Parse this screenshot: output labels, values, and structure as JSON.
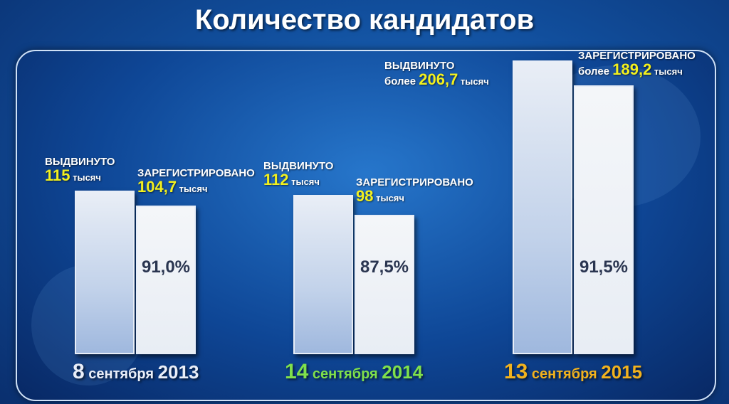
{
  "title": "Количество кандидатов",
  "colors": {
    "date_2013": "#e9eef8",
    "date_2014": "#7fe04b",
    "date_2015": "#f2b21e",
    "number_highlight": "#f2f01e"
  },
  "chart_data": {
    "type": "bar",
    "title": "Количество кандидатов",
    "categories": [
      "8 сентября 2013",
      "14 сентября 2014",
      "13 сентября 2015"
    ],
    "unit": "тысяч",
    "series": [
      {
        "name": "ВЫДВИНУТО",
        "values": [
          115,
          112,
          206.7
        ]
      },
      {
        "name": "ЗАРЕГИСТРИРОВАНО",
        "values": [
          104.7,
          98,
          189.2
        ]
      }
    ],
    "percent_registered": [
      "91,0%",
      "87,5%",
      "91,5%"
    ],
    "groups": [
      {
        "nominated_label": "ВЫДВИНУТО",
        "nominated_prefix": "",
        "nominated_value": "115",
        "nominated_unit": "тысяч",
        "registered_label": "ЗАРЕГИСТРИРОВАНО",
        "registered_prefix": "",
        "registered_value": "104,7",
        "registered_unit": "тысяч",
        "percent": "91,0%",
        "date_day": "8",
        "date_month": "сентября",
        "date_year": "2013"
      },
      {
        "nominated_label": "ВЫДВИНУТО",
        "nominated_prefix": "",
        "nominated_value": "112",
        "nominated_unit": "тысяч",
        "registered_label": "ЗАРЕГИСТРИРОВАНО",
        "registered_prefix": "",
        "registered_value": "98",
        "registered_unit": "тысяч",
        "percent": "87,5%",
        "date_day": "14",
        "date_month": "сентября",
        "date_year": "2014"
      },
      {
        "nominated_label": "ВЫДВИНУТО",
        "nominated_prefix": "более",
        "nominated_value": "206,7",
        "nominated_unit": "тысяч",
        "registered_label": "ЗАРЕГИСТРИРОВАНО",
        "registered_prefix": "более",
        "registered_value": "189,2",
        "registered_unit": "тысяч",
        "percent": "91,5%",
        "date_day": "13",
        "date_month": "сентября",
        "date_year": "2015"
      }
    ]
  }
}
